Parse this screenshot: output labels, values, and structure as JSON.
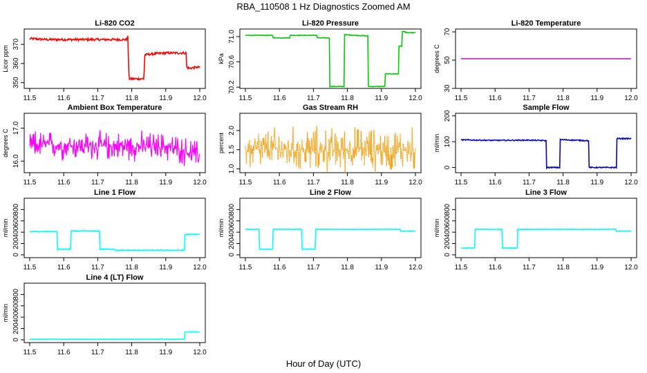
{
  "figure": {
    "title": "RBA_110508  1 Hz Diagnostics Zoomed AM",
    "xlabel": "Hour of Day (UTC)"
  },
  "chart_data": [
    {
      "type": "line",
      "title": "Li-820 CO2",
      "ylabel": "Licor ppm",
      "xlim": [
        11.5,
        12.0
      ],
      "ylim": [
        347,
        378
      ],
      "xticks": [
        "11.5",
        "11.6",
        "11.7",
        "11.8",
        "11.9",
        "12.0"
      ],
      "yticks": [
        {
          "v": 350,
          "label": "350"
        },
        {
          "v": 360,
          "label": "360"
        },
        {
          "v": 370,
          "label": "370"
        }
      ],
      "series": [
        {
          "color": "#ff0000",
          "noise": 0.6,
          "x": [
            11.5,
            11.55,
            11.6,
            11.65,
            11.7,
            11.75,
            11.786,
            11.788,
            11.792,
            11.8,
            11.836,
            11.838,
            11.86,
            11.9,
            11.93,
            11.96,
            11.961,
            11.97,
            11.99,
            12.0
          ],
          "y": [
            373,
            372.5,
            372.5,
            372.5,
            372.5,
            372.5,
            372.5,
            376,
            352,
            352,
            352,
            364.5,
            365,
            365.5,
            365.5,
            365.5,
            358,
            357.5,
            358,
            358
          ]
        }
      ]
    },
    {
      "type": "line",
      "title": "Li-820 Pressure",
      "ylabel": "kPa",
      "xlim": [
        11.5,
        12.0
      ],
      "ylim": [
        70.18,
        71.12
      ],
      "xticks": [
        "11.5",
        "11.6",
        "11.7",
        "11.8",
        "11.9",
        "12.0"
      ],
      "yticks": [
        {
          "v": 70.2,
          "label": "70.2"
        },
        {
          "v": 70.6,
          "label": "70.6"
        },
        {
          "v": 71.0,
          "label": "71.0"
        }
      ],
      "series": [
        {
          "color": "#00cc00",
          "noise": 0.005,
          "x": [
            11.5,
            11.58,
            11.581,
            11.63,
            11.631,
            11.71,
            11.711,
            11.747,
            11.748,
            11.79,
            11.791,
            11.86,
            11.861,
            11.91,
            11.911,
            11.95,
            11.951,
            11.96,
            11.961,
            11.97,
            11.971,
            12.0
          ],
          "y": [
            71.02,
            71.02,
            70.98,
            70.98,
            71.02,
            71.02,
            70.98,
            70.98,
            70.21,
            70.21,
            71.03,
            71.01,
            70.21,
            70.21,
            70.41,
            70.41,
            70.85,
            70.85,
            71.08,
            71.08,
            71.06,
            71.06
          ]
        }
      ]
    },
    {
      "type": "line",
      "title": "Li-820 Temperature",
      "ylabel": "degrees C",
      "xlim": [
        11.5,
        12.0
      ],
      "ylim": [
        30,
        72
      ],
      "xticks": [
        "11.5",
        "11.6",
        "11.7",
        "11.8",
        "11.9",
        "12.0"
      ],
      "yticks": [
        {
          "v": 30,
          "label": "30"
        },
        {
          "v": 50,
          "label": "50"
        },
        {
          "v": 70,
          "label": "70"
        }
      ],
      "series": [
        {
          "color": "#cc00cc",
          "noise": 0,
          "x": [
            11.5,
            12.0
          ],
          "y": [
            51,
            51
          ]
        }
      ]
    },
    {
      "type": "line",
      "title": "Ambient Box Temperature",
      "ylabel": "degrees C",
      "xlim": [
        11.5,
        12.0
      ],
      "ylim": [
        15.65,
        17.45
      ],
      "xticks": [
        "11.5",
        "11.6",
        "11.7",
        "11.8",
        "11.9",
        "12.0"
      ],
      "yticks": [
        {
          "v": 16.0,
          "label": "16.0"
        },
        {
          "v": 17.0,
          "label": "17.0"
        }
      ],
      "series": [
        {
          "color": "#ff00ff",
          "noise": 0.45,
          "noisy": true,
          "x": [
            11.5,
            11.7,
            11.9,
            11.99,
            12.0
          ],
          "y": [
            16.5,
            16.45,
            16.45,
            16.2,
            16.2
          ]
        }
      ]
    },
    {
      "type": "line",
      "title": "Gas Stream RH",
      "ylabel": "percent",
      "xlim": [
        11.5,
        12.0
      ],
      "ylim": [
        0.9,
        2.45
      ],
      "xticks": [
        "11.5",
        "11.6",
        "11.7",
        "11.8",
        "11.9",
        "12.0"
      ],
      "yticks": [
        {
          "v": 1.0,
          "label": "1.0"
        },
        {
          "v": 1.5,
          "label": "1.5"
        },
        {
          "v": 2.0,
          "label": "2.0"
        }
      ],
      "series": [
        {
          "color": "#ff9900",
          "noise": 0.6,
          "noisy": true,
          "dotted": true,
          "x": [
            11.5,
            12.0
          ],
          "y": [
            1.5,
            1.5
          ]
        }
      ]
    },
    {
      "type": "line",
      "title": "Sample Flow",
      "ylabel": "ml/min",
      "xlim": [
        11.5,
        12.0
      ],
      "ylim": [
        -20,
        210
      ],
      "xticks": [
        "11.5",
        "11.6",
        "11.7",
        "11.8",
        "11.9",
        "12.0"
      ],
      "yticks": [
        {
          "v": 0,
          "label": "0"
        },
        {
          "v": 100,
          "label": "100"
        },
        {
          "v": 200,
          "label": "200"
        }
      ],
      "series": [
        {
          "color": "#0000cc",
          "noise": 2,
          "x": [
            11.5,
            11.6,
            11.7,
            11.75,
            11.751,
            11.79,
            11.791,
            11.875,
            11.876,
            11.957,
            11.958,
            12.0
          ],
          "y": [
            107,
            105,
            106,
            104,
            0,
            0,
            108,
            104,
            0,
            0,
            112,
            112
          ]
        }
      ]
    },
    {
      "type": "line",
      "title": "Line 1 Flow",
      "ylabel": "ml/min",
      "xlim": [
        11.5,
        12.0
      ],
      "ylim": [
        -50,
        1000
      ],
      "xticks": [
        "11.5",
        "11.6",
        "11.7",
        "11.8",
        "11.9",
        "12.0"
      ],
      "yticks": [
        {
          "v": 0,
          "label": "0"
        },
        {
          "v": 200,
          "label": "200"
        },
        {
          "v": 400,
          "label": "400"
        },
        {
          "v": 600,
          "label": "600"
        },
        {
          "v": 800,
          "label": "800"
        }
      ],
      "series": [
        {
          "color": "#00ffff",
          "noise": 8,
          "x": [
            11.5,
            11.58,
            11.581,
            11.62,
            11.621,
            11.705,
            11.706,
            11.75,
            11.751,
            11.955,
            11.956,
            12.0
          ],
          "y": [
            410,
            410,
            100,
            100,
            420,
            420,
            100,
            100,
            80,
            80,
            360,
            360
          ]
        }
      ]
    },
    {
      "type": "line",
      "title": "Line 2 Flow",
      "ylabel": "ml/min",
      "xlim": [
        11.5,
        12.0
      ],
      "ylim": [
        -50,
        1000
      ],
      "xticks": [
        "11.5",
        "11.6",
        "11.7",
        "11.8",
        "11.9",
        "12.0"
      ],
      "yticks": [
        {
          "v": 0,
          "label": "0"
        },
        {
          "v": 200,
          "label": "200"
        },
        {
          "v": 400,
          "label": "400"
        },
        {
          "v": 600,
          "label": "600"
        },
        {
          "v": 800,
          "label": "800"
        }
      ],
      "series": [
        {
          "color": "#00ffff",
          "noise": 5,
          "x": [
            11.5,
            11.54,
            11.541,
            11.58,
            11.581,
            11.665,
            11.666,
            11.705,
            11.706,
            11.955,
            11.956,
            12.0
          ],
          "y": [
            450,
            450,
            100,
            100,
            450,
            450,
            100,
            100,
            450,
            450,
            420,
            420
          ]
        }
      ]
    },
    {
      "type": "line",
      "title": "Line 3 Flow",
      "ylabel": "ml/min",
      "xlim": [
        11.5,
        12.0
      ],
      "ylim": [
        -50,
        1000
      ],
      "xticks": [
        "11.5",
        "11.6",
        "11.7",
        "11.8",
        "11.9",
        "12.0"
      ],
      "yticks": [
        {
          "v": 0,
          "label": "0"
        },
        {
          "v": 200,
          "label": "200"
        },
        {
          "v": 400,
          "label": "400"
        },
        {
          "v": 600,
          "label": "600"
        },
        {
          "v": 800,
          "label": "800"
        }
      ],
      "series": [
        {
          "color": "#00ffff",
          "noise": 5,
          "x": [
            11.5,
            11.54,
            11.541,
            11.62,
            11.621,
            11.665,
            11.666,
            11.955,
            11.956,
            12.0
          ],
          "y": [
            120,
            120,
            450,
            450,
            120,
            120,
            450,
            450,
            420,
            420
          ]
        }
      ]
    },
    {
      "type": "line",
      "title": "Line 4 (LT) Flow",
      "ylabel": "ml/min",
      "xlim": [
        11.5,
        12.0
      ],
      "ylim": [
        -50,
        1000
      ],
      "xticks": [
        "11.5",
        "11.6",
        "11.7",
        "11.8",
        "11.9",
        "12.0"
      ],
      "yticks": [
        {
          "v": 0,
          "label": "0"
        },
        {
          "v": 200,
          "label": "200"
        },
        {
          "v": 400,
          "label": "400"
        },
        {
          "v": 600,
          "label": "600"
        },
        {
          "v": 800,
          "label": "800"
        }
      ],
      "series": [
        {
          "color": "#00ffff",
          "noise": 3,
          "x": [
            11.5,
            11.955,
            11.956,
            12.0
          ],
          "y": [
            10,
            10,
            140,
            140
          ]
        }
      ]
    }
  ]
}
